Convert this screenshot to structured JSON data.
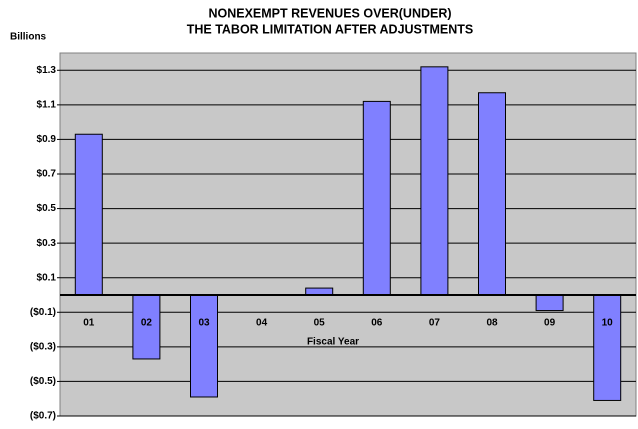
{
  "chart_data": {
    "type": "bar",
    "title": [
      "NONEXEMPT REVENUES OVER(UNDER)",
      "THE TABOR LIMITATION AFTER ADJUSTMENTS"
    ],
    "y_axis_label": "Billions",
    "x_axis_label": "Fiscal Year",
    "categories": [
      "01",
      "02",
      "03",
      "04",
      "05",
      "06",
      "07",
      "08",
      "09",
      "10"
    ],
    "values": [
      0.93,
      -0.37,
      -0.59,
      0,
      0.04,
      1.12,
      1.32,
      1.17,
      -0.09,
      -0.61
    ],
    "color": "#8080ff",
    "ylim": [
      -0.7,
      1.4
    ],
    "yticks": [
      {
        "value": -0.7,
        "label": "($0.7)"
      },
      {
        "value": -0.5,
        "label": "($0.5)"
      },
      {
        "value": -0.3,
        "label": "($0.3)"
      },
      {
        "value": -0.1,
        "label": "($0.1)"
      },
      {
        "value": 0.1,
        "label": "$0.1"
      },
      {
        "value": 0.3,
        "label": "$0.3"
      },
      {
        "value": 0.5,
        "label": "$0.5"
      },
      {
        "value": 0.7,
        "label": "$0.7"
      },
      {
        "value": 0.9,
        "label": "$0.9"
      },
      {
        "value": 1.1,
        "label": "$1.1"
      },
      {
        "value": 1.3,
        "label": "$1.3"
      }
    ],
    "grid": true
  }
}
